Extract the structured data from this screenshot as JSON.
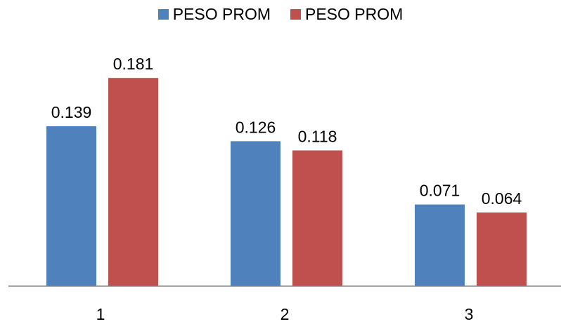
{
  "chart_data": {
    "type": "bar",
    "categories": [
      "1",
      "2",
      "3"
    ],
    "series": [
      {
        "name": "PESO PROM",
        "color": "#4F81BD",
        "values": [
          0.139,
          0.126,
          0.071
        ],
        "labels": [
          "0.139",
          "0.126",
          "0.071"
        ]
      },
      {
        "name": "PESO PROM",
        "color": "#C0504D",
        "values": [
          0.181,
          0.118,
          0.064
        ],
        "labels": [
          "0.181",
          "0.118",
          "0.064"
        ]
      }
    ],
    "title": "",
    "xlabel": "",
    "ylabel": "",
    "ylim": [
      0,
      0.2
    ],
    "grid": false,
    "legend_position": "top"
  }
}
